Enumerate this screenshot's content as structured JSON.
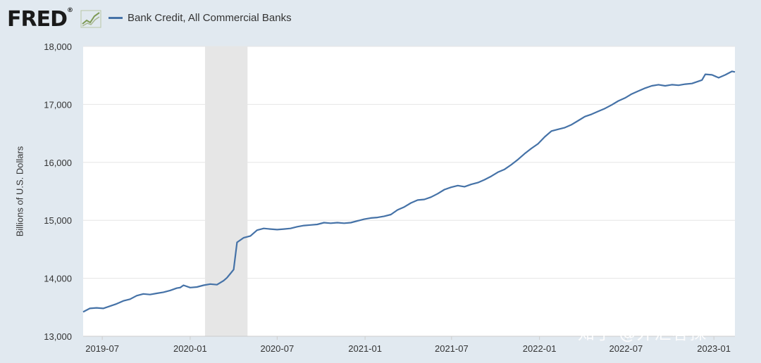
{
  "header": {
    "logo_text": "FRED",
    "logo_mark": "®",
    "logo_icon": "trend-line-icon",
    "series_label": "Bank Credit, All Commercial Banks",
    "series_color": "#4572a7"
  },
  "watermark": "知乎 @外汇客探",
  "chart_data": {
    "type": "line",
    "title": "",
    "xlabel": "",
    "ylabel": "Billions of U.S. Dollars",
    "ylim": [
      13000,
      18000
    ],
    "xlim": [
      "2019-05-22",
      "2023-02-14"
    ],
    "yticks": [
      13000,
      14000,
      15000,
      16000,
      17000,
      18000
    ],
    "ytick_labels": [
      "13,000",
      "14,000",
      "15,000",
      "16,000",
      "17,000",
      "18,000"
    ],
    "xticks": [
      "2019-07-01",
      "2020-01-01",
      "2020-07-01",
      "2021-01-01",
      "2021-07-01",
      "2022-01-01",
      "2022-07-01",
      "2023-01-01"
    ],
    "xtick_labels": [
      "2019-07",
      "2020-01",
      "2020-07",
      "2021-01",
      "2021-07",
      "2022-01",
      "2022-07",
      "2023-01"
    ],
    "grid": true,
    "legend": "top-left",
    "recession_band": [
      "2020-02-01",
      "2020-04-30"
    ],
    "series": [
      {
        "name": "Bank Credit, All Commercial Banks",
        "color": "#4572a7",
        "x": [
          "2019-05-22",
          "2019-06-05",
          "2019-06-19",
          "2019-07-03",
          "2019-07-17",
          "2019-07-31",
          "2019-08-14",
          "2019-08-28",
          "2019-09-11",
          "2019-09-25",
          "2019-10-09",
          "2019-10-23",
          "2019-11-06",
          "2019-11-20",
          "2019-12-04",
          "2019-12-11",
          "2019-12-18",
          "2020-01-01",
          "2020-01-15",
          "2020-01-29",
          "2020-02-12",
          "2020-02-26",
          "2020-03-11",
          "2020-03-18",
          "2020-03-25",
          "2020-04-01",
          "2020-04-08",
          "2020-04-22",
          "2020-05-06",
          "2020-05-20",
          "2020-06-03",
          "2020-06-17",
          "2020-07-01",
          "2020-07-15",
          "2020-07-29",
          "2020-08-12",
          "2020-08-26",
          "2020-09-09",
          "2020-09-23",
          "2020-10-07",
          "2020-10-21",
          "2020-11-04",
          "2020-11-18",
          "2020-12-02",
          "2020-12-16",
          "2020-12-30",
          "2021-01-13",
          "2021-01-27",
          "2021-02-10",
          "2021-02-24",
          "2021-03-10",
          "2021-03-24",
          "2021-04-07",
          "2021-04-21",
          "2021-05-05",
          "2021-05-19",
          "2021-06-02",
          "2021-06-16",
          "2021-06-30",
          "2021-07-14",
          "2021-07-28",
          "2021-08-11",
          "2021-08-25",
          "2021-09-08",
          "2021-09-22",
          "2021-10-06",
          "2021-10-20",
          "2021-11-03",
          "2021-11-17",
          "2021-12-01",
          "2021-12-15",
          "2021-12-29",
          "2022-01-12",
          "2022-01-26",
          "2022-02-09",
          "2022-02-23",
          "2022-03-09",
          "2022-03-23",
          "2022-04-06",
          "2022-04-20",
          "2022-05-04",
          "2022-05-18",
          "2022-06-01",
          "2022-06-15",
          "2022-06-29",
          "2022-07-13",
          "2022-07-27",
          "2022-08-10",
          "2022-08-24",
          "2022-09-07",
          "2022-09-21",
          "2022-10-05",
          "2022-10-19",
          "2022-11-02",
          "2022-11-16",
          "2022-11-30",
          "2022-12-07",
          "2022-12-14",
          "2022-12-28",
          "2023-01-11",
          "2023-01-25",
          "2023-02-08",
          "2023-02-14"
        ],
        "y": [
          13420,
          13480,
          13490,
          13480,
          13520,
          13560,
          13610,
          13640,
          13700,
          13730,
          13720,
          13740,
          13760,
          13790,
          13830,
          13840,
          13880,
          13840,
          13850,
          13880,
          13900,
          13890,
          13960,
          14010,
          14080,
          14150,
          14620,
          14700,
          14730,
          14830,
          14860,
          14850,
          14840,
          14850,
          14860,
          14890,
          14910,
          14920,
          14930,
          14960,
          14950,
          14960,
          14950,
          14960,
          14990,
          15020,
          15040,
          15050,
          15070,
          15100,
          15180,
          15230,
          15300,
          15350,
          15360,
          15400,
          15460,
          15530,
          15570,
          15600,
          15580,
          15620,
          15650,
          15700,
          15760,
          15830,
          15880,
          15960,
          16050,
          16150,
          16240,
          16320,
          16440,
          16540,
          16570,
          16600,
          16650,
          16720,
          16790,
          16830,
          16880,
          16930,
          16990,
          17060,
          17110,
          17180,
          17230,
          17280,
          17320,
          17340,
          17320,
          17340,
          17330,
          17350,
          17360,
          17400,
          17420,
          17520,
          17510,
          17460,
          17510,
          17570,
          17560
        ]
      }
    ]
  }
}
